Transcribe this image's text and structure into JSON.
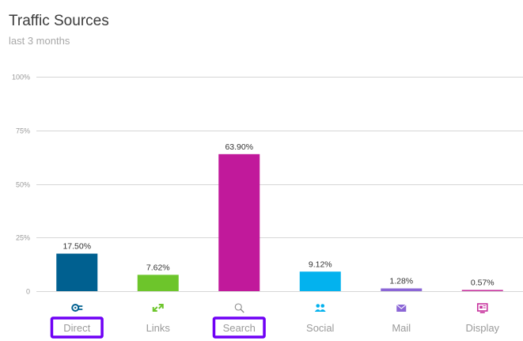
{
  "header": {
    "title": "Traffic Sources",
    "subtitle": "last 3 months"
  },
  "colors": {
    "direct": "#006090",
    "links": "#6dc52b",
    "search": "#c1199b",
    "social": "#03b2ee",
    "mail": "#8b66d6",
    "display": "#c7319d",
    "grid": "#d6d6d6",
    "highlight": "#6f00f5"
  },
  "chart_data": {
    "type": "bar",
    "title": "Traffic Sources",
    "subtitle": "last 3 months",
    "categories": [
      "Direct",
      "Links",
      "Search",
      "Social",
      "Mail",
      "Display"
    ],
    "values": [
      17.5,
      7.62,
      63.9,
      9.12,
      1.28,
      0.57
    ],
    "value_labels": [
      "17.50%",
      "7.62%",
      "63.90%",
      "9.12%",
      "1.28%",
      "0.57%"
    ],
    "icons": [
      "direct-icon",
      "links-icon",
      "search-icon",
      "social-icon",
      "mail-icon",
      "display-icon"
    ],
    "highlighted": [
      "Direct",
      "Search"
    ],
    "ylim": [
      0,
      100
    ],
    "yticks": [
      0,
      25,
      50,
      75,
      100
    ],
    "ytick_labels": [
      "0",
      "25%",
      "50%",
      "75%",
      "100%"
    ],
    "grid": true
  }
}
